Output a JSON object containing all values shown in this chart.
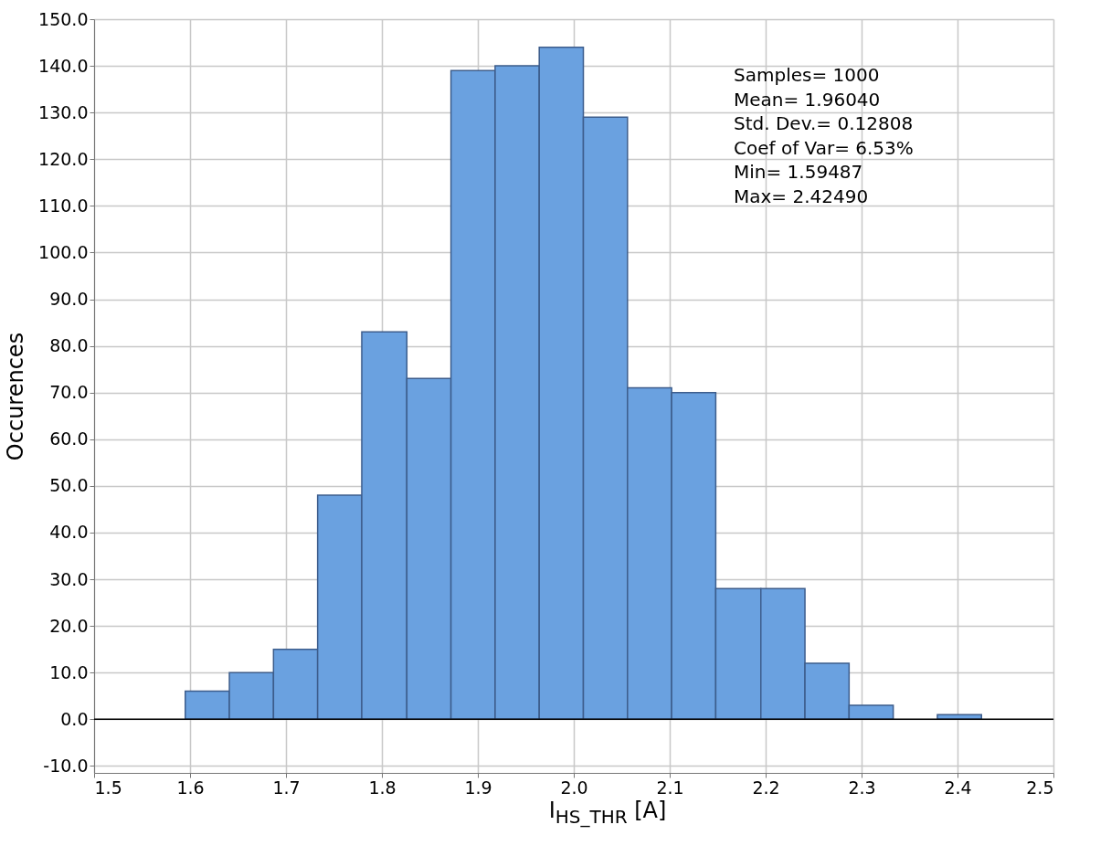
{
  "chart_data": {
    "type": "histogram",
    "bins": [
      1.595,
      1.641,
      1.687,
      1.733,
      1.779,
      1.826,
      1.872,
      1.918,
      1.964,
      2.01,
      2.056,
      2.102,
      2.148,
      2.195,
      2.241,
      2.287,
      2.333,
      2.379,
      2.425
    ],
    "values": [
      6,
      10,
      15,
      48,
      83,
      73,
      139,
      140,
      144,
      129,
      71,
      70,
      28,
      28,
      12,
      3,
      0,
      1
    ],
    "color": "#6aa1e0",
    "xlabel": "I$_{HS_THR}$  [A]",
    "ylabel": "Occurences",
    "xlim": [
      1.5,
      2.5
    ],
    "xticks": [
      1.5,
      1.6,
      1.7,
      1.8,
      1.9,
      {
        "value": 2,
        "label": "2.0"
      },
      2.1,
      2.2,
      2.3,
      2.4,
      2.5
    ],
    "ylim": [
      -11.5,
      150
    ],
    "yticks": [
      {
        "value": -10,
        "label": "-10.0"
      },
      {
        "value": 0,
        "label": "0.0"
      },
      {
        "value": 10,
        "label": "10.0"
      },
      {
        "value": 20,
        "label": "20.0"
      },
      {
        "value": 30,
        "label": "30.0"
      },
      {
        "value": 40,
        "label": "40.0"
      },
      {
        "value": 50,
        "label": "50.0"
      },
      {
        "value": 60,
        "label": "60.0"
      },
      {
        "value": 70,
        "label": "70.0"
      },
      {
        "value": 80,
        "label": "80.0"
      },
      {
        "value": 90,
        "label": "90.0"
      },
      {
        "value": 100,
        "label": "100.0"
      },
      {
        "value": 110,
        "label": "110.0"
      },
      {
        "value": 120,
        "label": "120.0"
      },
      {
        "value": 130,
        "label": "130.0"
      },
      {
        "value": 140,
        "label": "140.0"
      },
      {
        "value": 150,
        "label": "150.0"
      }
    ],
    "ref_lines": [
      {
        "axis": "y",
        "value": 0,
        "color": "#000000"
      }
    ],
    "annotations": [
      "Samples= 1000",
      "Mean= 1.96040",
      "Std. Dev.= 0.12808",
      "Coef of Var= 6.53%",
      "Min= 1.59487",
      "Max= 2.42490"
    ],
    "grid": true
  }
}
